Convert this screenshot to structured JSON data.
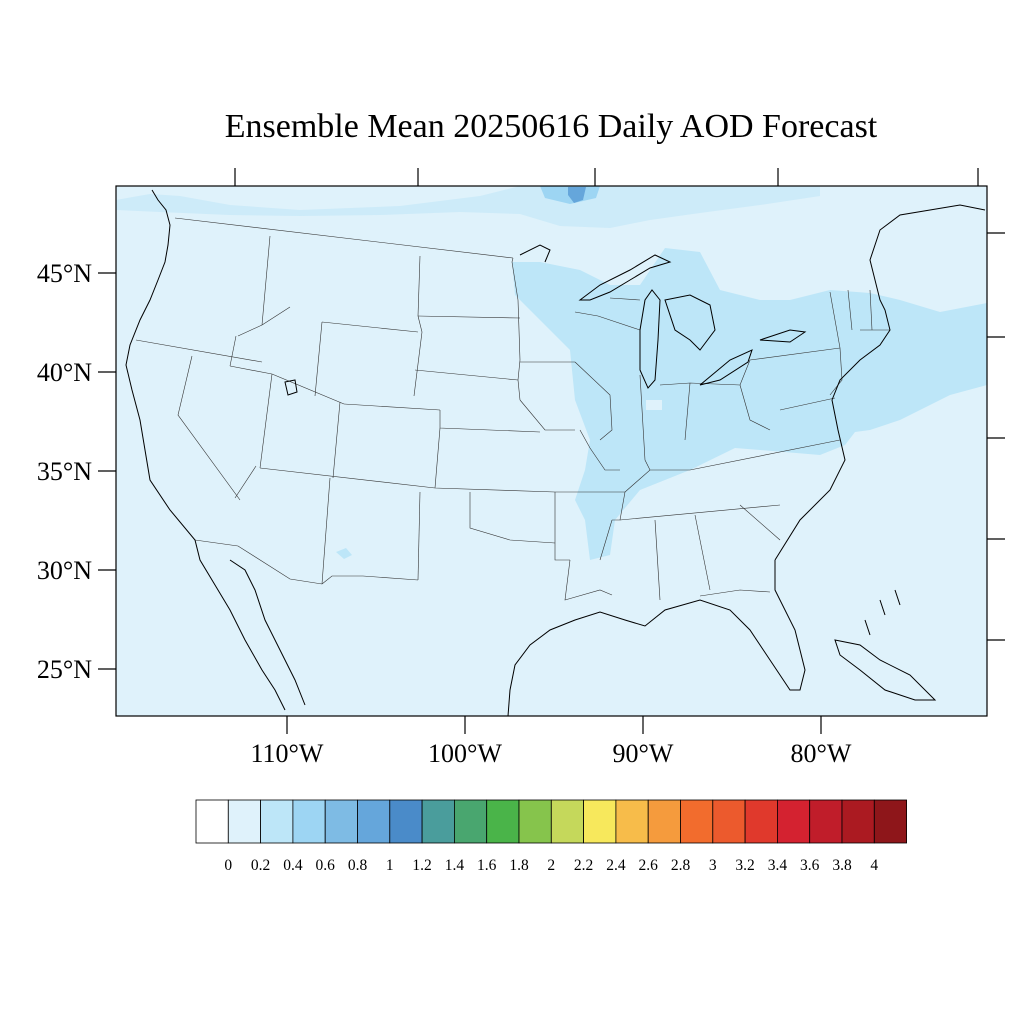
{
  "title": "Ensemble Mean 20250616 Daily AOD Forecast",
  "map": {
    "region": "Continental United States",
    "lat_range": [
      22.5,
      49.4
    ],
    "lon_range": [
      -119.7,
      -71.4
    ],
    "lat_labels": [
      "45°N",
      "40°N",
      "35°N",
      "30°N",
      "25°N"
    ],
    "lat_values": [
      45,
      40,
      35,
      30,
      25
    ],
    "lon_labels": [
      "110°W",
      "100°W",
      "90°W",
      "80°W"
    ],
    "lon_values": [
      -110,
      -100,
      -90,
      -80
    ],
    "background_level_color": "#dff2fb"
  },
  "colorbar": {
    "labels": [
      "0",
      "0.2",
      "0.4",
      "0.6",
      "0.8",
      "1",
      "1.2",
      "1.4",
      "1.6",
      "1.8",
      "2",
      "2.2",
      "2.4",
      "2.6",
      "2.8",
      "3",
      "3.2",
      "3.4",
      "3.6",
      "3.8",
      "4"
    ],
    "colors": [
      "#ffffff",
      "#dff2fb",
      "#bde6f8",
      "#9dd5f3",
      "#7ebbe4",
      "#65a6db",
      "#4a8bc9",
      "#4a9d9c",
      "#49a66f",
      "#4ab449",
      "#86c44c",
      "#c5d85b",
      "#f7e85c",
      "#f7bc4a",
      "#f59b3d",
      "#f26c2d",
      "#ec5a2d",
      "#e0392c",
      "#d42230",
      "#c01d2a",
      "#ab1a21",
      "#8e161a"
    ]
  }
}
